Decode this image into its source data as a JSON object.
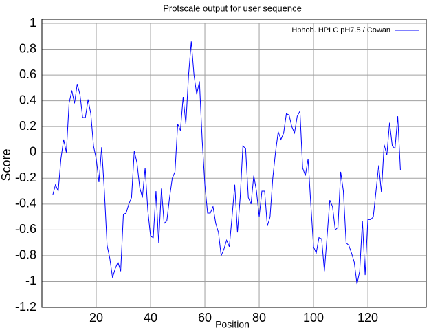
{
  "chart_data": {
    "type": "line",
    "title": "Protscale output  for  user  sequence",
    "x_label": "Position",
    "y_label": "Score",
    "x": [
      4,
      5,
      6,
      7,
      8,
      9,
      10,
      11,
      12,
      13,
      14,
      15,
      16,
      17,
      18,
      19,
      20,
      21,
      22,
      23,
      24,
      25,
      26,
      27,
      28,
      29,
      30,
      31,
      32,
      33,
      34,
      35,
      36,
      37,
      38,
      39,
      40,
      41,
      42,
      43,
      44,
      45,
      46,
      47,
      48,
      49,
      50,
      51,
      52,
      53,
      54,
      55,
      56,
      57,
      58,
      59,
      60,
      61,
      62,
      63,
      64,
      65,
      66,
      67,
      68,
      69,
      70,
      71,
      72,
      73,
      74,
      75,
      76,
      77,
      78,
      79,
      80,
      81,
      82,
      83,
      84,
      85,
      86,
      87,
      88,
      89,
      90,
      91,
      92,
      93,
      94,
      95,
      96,
      97,
      98,
      99,
      100,
      101,
      102,
      103,
      104,
      105,
      106,
      107,
      108,
      109,
      110,
      111,
      112,
      113,
      114,
      115,
      116,
      117,
      118,
      119,
      120,
      121,
      122,
      123,
      124,
      125,
      126,
      127,
      128,
      129,
      130,
      131,
      132
    ],
    "series": [
      {
        "name": "Hphob.   HPLC pH7.5  /  Cowan",
        "color": "#0000ff",
        "values": [
          -0.33,
          -0.25,
          -0.3,
          -0.05,
          0.1,
          0.0,
          0.38,
          0.48,
          0.38,
          0.53,
          0.45,
          0.27,
          0.27,
          0.41,
          0.3,
          0.05,
          -0.05,
          -0.23,
          0.04,
          -0.3,
          -0.72,
          -0.82,
          -0.97,
          -0.9,
          -0.85,
          -0.92,
          -0.48,
          -0.47,
          -0.4,
          -0.35,
          0.01,
          -0.08,
          -0.27,
          -0.35,
          -0.12,
          -0.45,
          -0.65,
          -0.66,
          -0.3,
          -0.7,
          -0.28,
          -0.55,
          -0.53,
          -0.35,
          -0.2,
          -0.15,
          0.22,
          0.17,
          0.43,
          0.22,
          0.6,
          0.86,
          0.6,
          0.45,
          0.55,
          0.1,
          -0.25,
          -0.47,
          -0.47,
          -0.42,
          -0.55,
          -0.62,
          -0.8,
          -0.75,
          -0.68,
          -0.73,
          -0.5,
          -0.25,
          -0.62,
          -0.35,
          0.05,
          0.03,
          -0.35,
          -0.4,
          -0.18,
          -0.3,
          -0.5,
          -0.3,
          -0.3,
          -0.57,
          -0.5,
          -0.2,
          0.0,
          0.16,
          0.1,
          0.15,
          0.3,
          0.29,
          0.2,
          0.15,
          0.28,
          0.32,
          -0.12,
          -0.18,
          -0.05,
          -0.4,
          -0.73,
          -0.78,
          -0.66,
          -0.67,
          -0.92,
          -0.65,
          -0.37,
          -0.42,
          -0.6,
          -0.58,
          -0.15,
          -0.3,
          -0.7,
          -0.72,
          -0.78,
          -0.85,
          -1.02,
          -0.92,
          -0.53,
          -0.95,
          -0.52,
          -0.52,
          -0.5,
          -0.3,
          -0.1,
          -0.31,
          0.06,
          -0.02,
          0.23,
          0.05,
          0.03,
          0.28,
          -0.14
        ]
      }
    ],
    "xlim": [
      0,
      141.5
    ],
    "xticks": [
      20,
      40,
      60,
      80,
      100,
      120
    ],
    "ylim": [
      -1.2,
      1
    ],
    "yticks": [
      1,
      0.8,
      0.6,
      0.4,
      0.2,
      0,
      -0.2,
      -0.4,
      -0.6,
      -0.8,
      -1,
      -1.2
    ],
    "grid": true,
    "legend": "top-right"
  }
}
